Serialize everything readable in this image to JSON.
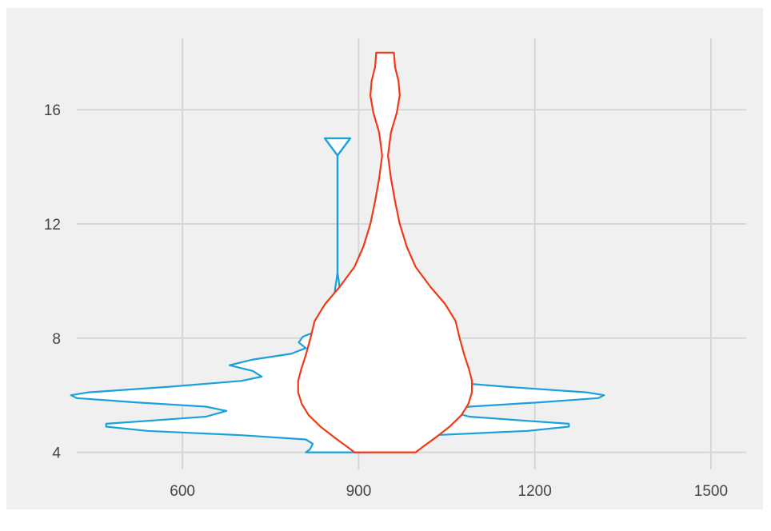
{
  "chart_data": {
    "type": "violin",
    "xlim": [
      420,
      1560
    ],
    "ylim": [
      3.4,
      18.5
    ],
    "x_ticks": [
      600,
      900,
      1200,
      1500
    ],
    "y_ticks": [
      4,
      8,
      12,
      16
    ],
    "grid": true,
    "background": "#f0f0f0",
    "grid_color": "#d6d6d6",
    "series": [
      {
        "color": "#1aa0db",
        "center_x": 864,
        "outline": [
          [
            4.0,
            810
          ],
          [
            4.1,
            817
          ],
          [
            4.3,
            822
          ],
          [
            4.45,
            810
          ],
          [
            4.6,
            700
          ],
          [
            4.75,
            540
          ],
          [
            4.9,
            470
          ],
          [
            5.0,
            470
          ],
          [
            5.1,
            540
          ],
          [
            5.25,
            640
          ],
          [
            5.45,
            675
          ],
          [
            5.6,
            640
          ],
          [
            5.75,
            520
          ],
          [
            5.9,
            420
          ],
          [
            6.0,
            410
          ],
          [
            6.1,
            440
          ],
          [
            6.3,
            580
          ],
          [
            6.5,
            700
          ],
          [
            6.65,
            735
          ],
          [
            6.85,
            720
          ],
          [
            7.05,
            680
          ],
          [
            7.25,
            720
          ],
          [
            7.45,
            785
          ],
          [
            7.65,
            810
          ],
          [
            7.85,
            798
          ],
          [
            8.05,
            805
          ],
          [
            8.25,
            830
          ],
          [
            8.45,
            845
          ],
          [
            9.0,
            855
          ],
          [
            10.3,
            864
          ]
        ],
        "whisker": [
          10.3,
          14.4
        ],
        "cap_y": 14.4,
        "cap_top_y": 15.0,
        "cap_half_width": 16
      },
      {
        "color": "#f03a17",
        "center_x": 945,
        "outline": [
          [
            4.0,
            893
          ],
          [
            4.2,
            880
          ],
          [
            4.5,
            860
          ],
          [
            4.9,
            835
          ],
          [
            5.3,
            815
          ],
          [
            5.7,
            803
          ],
          [
            6.1,
            797
          ],
          [
            6.5,
            797
          ],
          [
            6.9,
            802
          ],
          [
            7.4,
            810
          ],
          [
            8.0,
            818
          ],
          [
            8.6,
            825
          ],
          [
            9.2,
            843
          ],
          [
            9.8,
            868
          ],
          [
            10.5,
            893
          ],
          [
            11.2,
            908
          ],
          [
            12.0,
            920
          ],
          [
            12.8,
            928
          ],
          [
            13.6,
            935
          ],
          [
            14.4,
            940
          ],
          [
            15.2,
            935
          ],
          [
            15.9,
            925
          ],
          [
            16.5,
            920
          ],
          [
            17.0,
            922
          ],
          [
            17.5,
            928
          ],
          [
            18.0,
            930
          ]
        ]
      }
    ]
  }
}
